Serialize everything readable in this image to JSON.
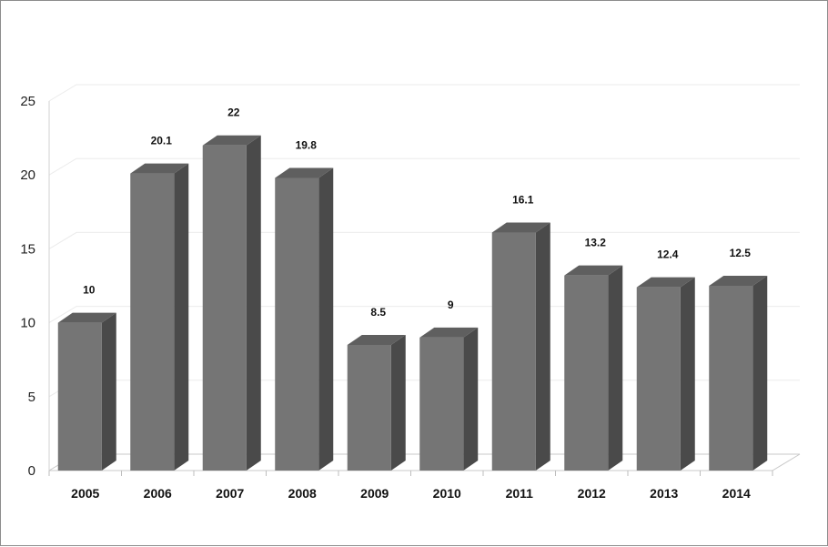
{
  "chart_data": {
    "type": "bar",
    "categories": [
      "2005",
      "2006",
      "2007",
      "2008",
      "2009",
      "2010",
      "2011",
      "2012",
      "2013",
      "2014"
    ],
    "values": [
      10,
      20.1,
      22,
      19.8,
      8.5,
      9,
      16.1,
      13.2,
      12.4,
      12.5
    ],
    "data_labels": [
      "10",
      "20.1",
      "22",
      "19.8",
      "8.5",
      "9",
      "16.1",
      "13.2",
      "12.4",
      "12.5"
    ],
    "title": "",
    "xlabel": "",
    "ylabel": "",
    "ylim": [
      0,
      25
    ],
    "yticks": [
      "0",
      "5",
      "10",
      "15",
      "20",
      "25"
    ],
    "grid": true,
    "legend": "none",
    "style": "3d-column",
    "colors": {
      "front": "#757575",
      "side": "#4a4a4a",
      "top": "#5f5f5f",
      "grid": "#ebebeb",
      "floor": "#c8c8c8"
    }
  }
}
